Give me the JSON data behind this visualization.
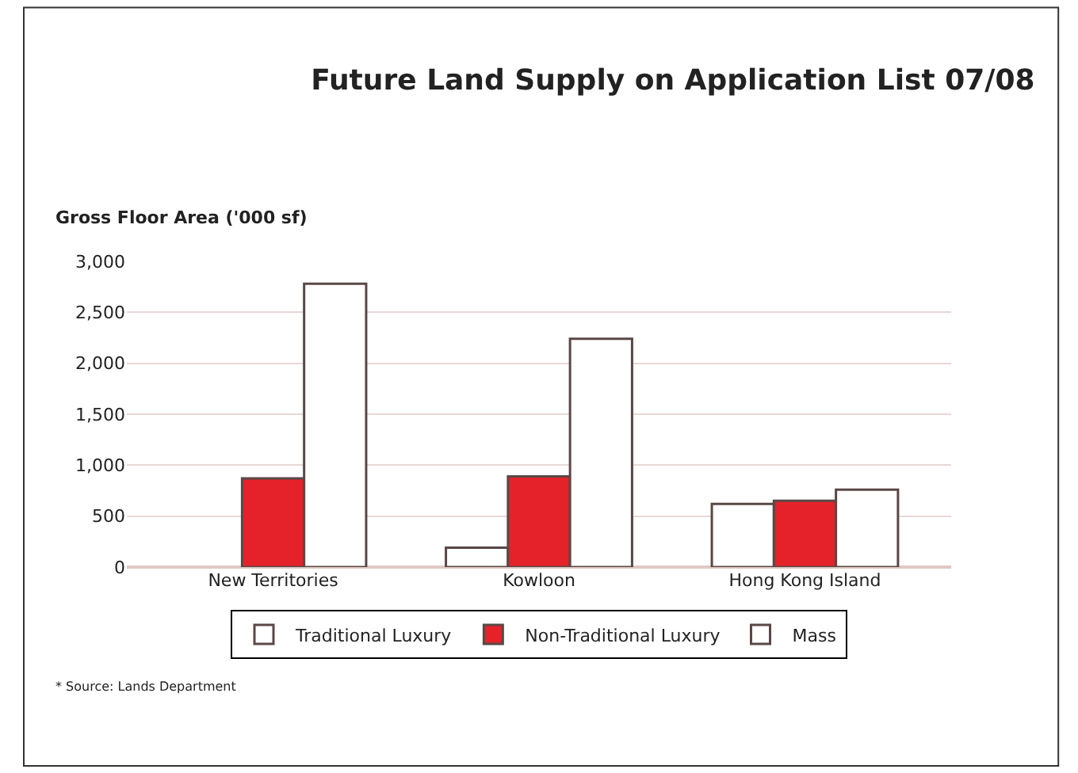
{
  "chart_data": {
    "type": "bar",
    "title": "Future Land Supply on Application List 07/08",
    "ylabel": "Gross Floor Area ('000 sf)",
    "categories": [
      "New Territories",
      "Kowloon",
      "Hong Kong Island"
    ],
    "series": [
      {
        "name": "Traditional Luxury",
        "color": "#ffffff",
        "values": [
          null,
          190,
          620
        ]
      },
      {
        "name": "Non-Traditional Luxury",
        "color": "#e52229",
        "values": [
          870,
          890,
          650
        ]
      },
      {
        "name": "Mass",
        "color": "#ffffff",
        "values": [
          2780,
          2240,
          760
        ]
      }
    ],
    "ylim": [
      0,
      3000
    ],
    "yticks": [
      {
        "value": 0,
        "label": "0"
      },
      {
        "value": 500,
        "label": "500"
      },
      {
        "value": 1000,
        "label": "1,000"
      },
      {
        "value": 1500,
        "label": "1,500"
      },
      {
        "value": 2000,
        "label": "2,000"
      },
      {
        "value": 2500,
        "label": "2,500"
      },
      {
        "value": 3000,
        "label": "3,000"
      }
    ],
    "grid": "y",
    "legend": "bottom",
    "annotations": [
      "* Source: Lands Department"
    ]
  }
}
